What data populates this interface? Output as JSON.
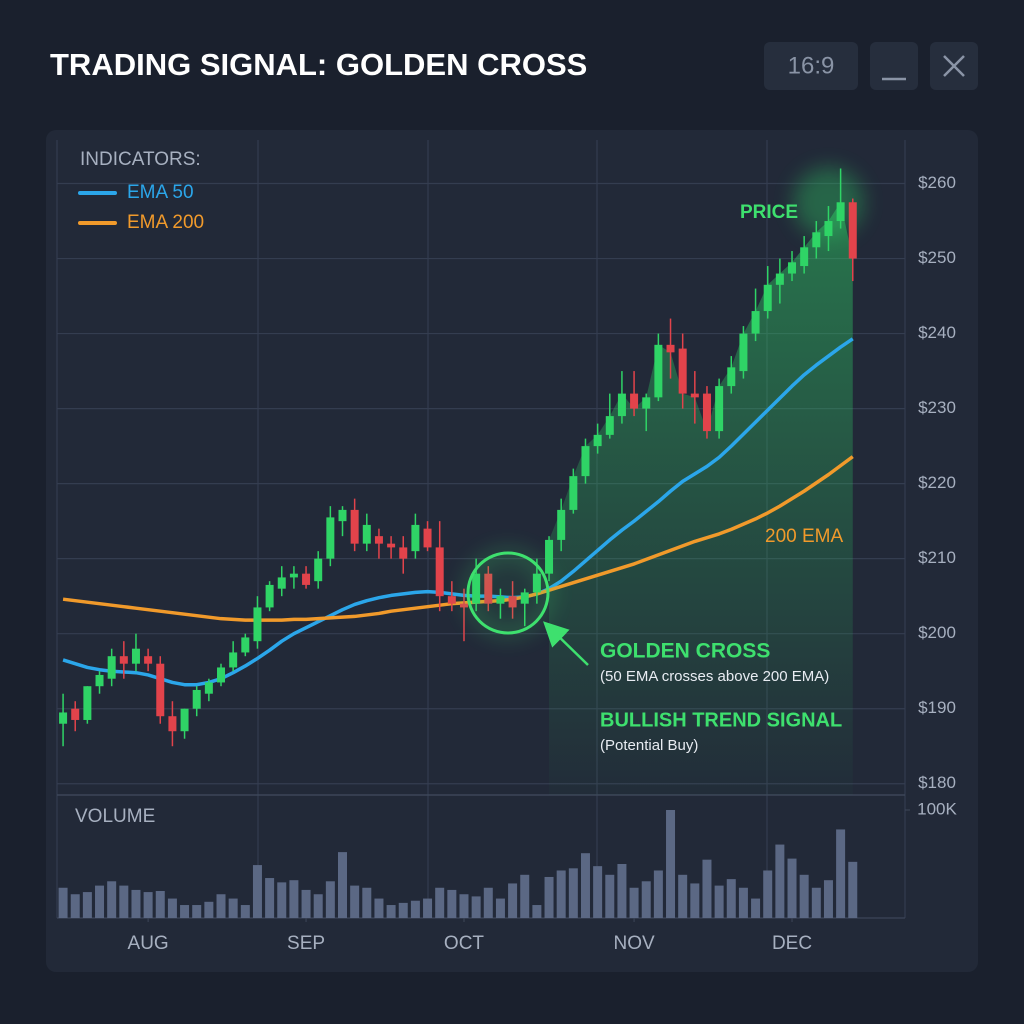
{
  "header": {
    "title": "TRADING SIGNAL: GOLDEN CROSS",
    "ratio_button": "16:9"
  },
  "chart_data": {
    "type": "candlestick",
    "legend_title": "INDICATORS:",
    "up_color": "#2fd466",
    "down_color": "#e2434b",
    "xlim": [
      -0.5,
      69.3
    ],
    "xticks": [
      {
        "value": 7,
        "label": "AUG"
      },
      {
        "value": 20,
        "label": "SEP"
      },
      {
        "value": 33,
        "label": "OCT"
      },
      {
        "value": 47,
        "label": "NOV"
      },
      {
        "value": 60,
        "label": "DEC"
      }
    ],
    "ylim": [
      178.5,
      265.8
    ],
    "yticks": [
      {
        "value": 180,
        "label": "$180"
      },
      {
        "value": 190,
        "label": "$190"
      },
      {
        "value": 200,
        "label": "$200"
      },
      {
        "value": 210,
        "label": "$210"
      },
      {
        "value": 220,
        "label": "$220"
      },
      {
        "value": 230,
        "label": "$230"
      },
      {
        "value": 240,
        "label": "$240"
      },
      {
        "value": 250,
        "label": "$250"
      },
      {
        "value": 260,
        "label": "$260"
      }
    ],
    "grid": true,
    "open": [
      188,
      190,
      188.5,
      193,
      194,
      197,
      196,
      197,
      196,
      189,
      187,
      190,
      192,
      193.5,
      195.5,
      197.5,
      199,
      203.5,
      206,
      207.5,
      208,
      207,
      210,
      215,
      216.5,
      212,
      213,
      212,
      211.5,
      211,
      214,
      211.5,
      205,
      204,
      204,
      208,
      204,
      205,
      204,
      205.5,
      208,
      212.5,
      216.5,
      221,
      225,
      226.5,
      229,
      232,
      230,
      231.5,
      238.5,
      238,
      232,
      232,
      227,
      233,
      235,
      240,
      243,
      246.5,
      248,
      249,
      251.5,
      253,
      255,
      257.5
    ],
    "high": [
      192,
      191,
      193,
      195,
      198,
      199,
      200,
      198,
      197,
      191,
      190,
      193,
      194,
      196,
      199,
      200,
      205,
      207,
      209,
      209,
      209,
      211,
      217,
      217,
      218,
      216,
      214,
      213,
      213,
      216,
      215,
      215,
      207,
      206,
      210,
      209,
      206,
      207,
      206,
      210,
      213,
      218,
      222,
      226,
      228,
      232,
      235,
      235,
      232,
      240,
      242,
      240,
      235,
      233,
      234,
      237,
      241,
      246,
      249,
      250,
      251,
      253,
      255,
      257,
      262,
      258
    ],
    "low": [
      185,
      187,
      188,
      192,
      193,
      194,
      195,
      195,
      188,
      185,
      186,
      189,
      191,
      193,
      195,
      197,
      198,
      203,
      205,
      206,
      206,
      206,
      209,
      213,
      211,
      211,
      210,
      210,
      208,
      210,
      211,
      203,
      203,
      199,
      203,
      203,
      202,
      202,
      201,
      204,
      207,
      211,
      216,
      220,
      224,
      226,
      228,
      229,
      227,
      231,
      234,
      230,
      228,
      226,
      226,
      232,
      234,
      239,
      242,
      244,
      247,
      248,
      250,
      251,
      254,
      247
    ],
    "close": [
      189.5,
      188.5,
      193,
      194.5,
      197,
      196,
      198,
      196,
      189,
      187,
      190,
      192.5,
      193.5,
      195.5,
      197.5,
      199.5,
      203.5,
      206.5,
      207.5,
      208,
      206.5,
      210,
      215.5,
      216.5,
      212,
      214.5,
      212,
      211.5,
      210,
      214.5,
      211.5,
      205,
      204,
      203.5,
      208,
      204,
      205,
      203.5,
      205.5,
      208,
      212.5,
      216.5,
      221,
      225,
      226.5,
      229,
      232,
      230,
      231.5,
      238.5,
      237.5,
      232,
      231.5,
      227,
      233,
      235.5,
      240,
      243,
      246.5,
      248,
      249.5,
      251.5,
      253.5,
      255,
      257.5,
      250
    ],
    "series": [
      {
        "name": "EMA 50",
        "color": "#2ba6ea",
        "values": [
          196.5,
          196,
          195.5,
          195.2,
          195,
          194.9,
          194.8,
          194.5,
          194,
          193.5,
          193.2,
          193.2,
          193.5,
          194,
          194.8,
          195.7,
          196.7,
          197.8,
          199,
          200,
          200.8,
          201.6,
          202.4,
          203.2,
          203.9,
          204.4,
          204.8,
          205.1,
          205.3,
          205.5,
          205.6,
          205.5,
          205.3,
          205.1,
          205,
          205,
          204.9,
          204.8,
          204.9,
          205.3,
          206,
          207,
          208.3,
          209.7,
          211.1,
          212.5,
          213.8,
          215,
          216.3,
          217.6,
          219,
          220.3,
          221.3,
          222.3,
          223.5,
          225,
          226.6,
          228.2,
          229.8,
          231.4,
          233,
          234.5,
          235.8,
          237,
          238.2,
          239.3
        ]
      },
      {
        "name": "EMA 200",
        "color": "#f19a2b",
        "values": [
          204.6,
          204.4,
          204.2,
          204,
          203.8,
          203.6,
          203.4,
          203.2,
          203,
          202.8,
          202.6,
          202.4,
          202.2,
          202,
          201.9,
          201.8,
          201.8,
          201.8,
          201.8,
          201.9,
          201.9,
          202,
          202.1,
          202.2,
          202.3,
          202.5,
          202.7,
          203,
          203.2,
          203.4,
          203.6,
          203.8,
          204,
          204.1,
          204.2,
          204.3,
          204.4,
          204.6,
          204.9,
          205.3,
          205.8,
          206.3,
          206.8,
          207.3,
          207.8,
          208.3,
          208.8,
          209.3,
          209.9,
          210.5,
          211.1,
          211.7,
          212.3,
          212.8,
          213.3,
          213.9,
          214.6,
          215.3,
          216.1,
          217,
          218,
          219,
          220.1,
          221.2,
          222.4,
          223.6
        ]
      }
    ],
    "annotations": {
      "price": "PRICE",
      "ema200": "200 EMA",
      "cross_title": "GOLDEN CROSS",
      "cross_note": "(50 EMA crosses above 200 EMA)",
      "signal_title": "BULLISH TREND SIGNAL",
      "signal_note": "(Potential Buy)"
    },
    "volume": {
      "label": "VOLUME",
      "color": "#5b6884",
      "ylim": [
        0,
        100000
      ],
      "yticks": [
        {
          "value": 100000,
          "label": "100K"
        }
      ],
      "values": [
        28000,
        22000,
        24000,
        30000,
        34000,
        30000,
        26000,
        24000,
        25000,
        18000,
        12000,
        12000,
        15000,
        22000,
        18000,
        12000,
        49000,
        37000,
        33000,
        35000,
        26000,
        22000,
        34000,
        61000,
        30000,
        28000,
        18000,
        12000,
        14000,
        16000,
        18000,
        28000,
        26000,
        22000,
        20000,
        28000,
        18000,
        32000,
        40000,
        12000,
        38000,
        44000,
        46000,
        60000,
        48000,
        40000,
        50000,
        28000,
        34000,
        44000,
        100000,
        40000,
        32000,
        54000,
        30000,
        36000,
        28000,
        18000,
        44000,
        68000,
        55000,
        40000,
        28000,
        35000,
        82000,
        52000
      ]
    }
  }
}
